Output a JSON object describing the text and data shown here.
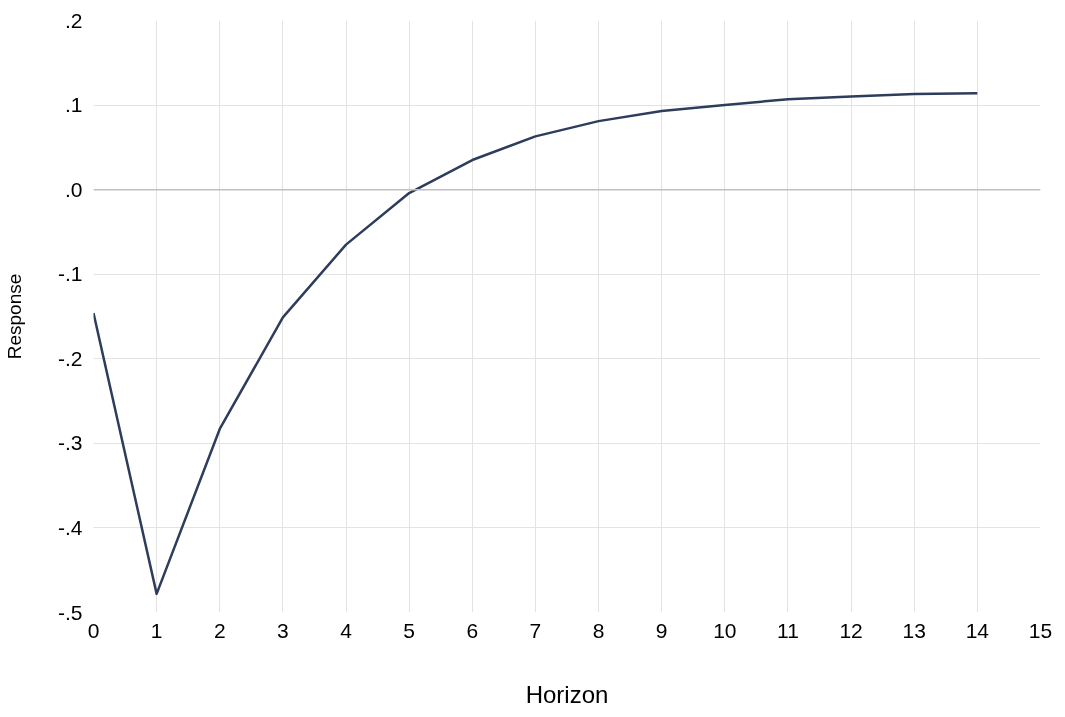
{
  "chart_data": {
    "type": "line",
    "xlabel": "Horizon",
    "ylabel": "Response",
    "x": [
      0,
      1,
      2,
      3,
      4,
      5,
      6,
      7,
      8,
      9,
      10,
      11,
      12,
      13,
      14
    ],
    "series": [
      {
        "color": "#2e3d5c",
        "values": [
          -0.146,
          -0.478,
          -0.283,
          -0.151,
          -0.065,
          -0.004,
          0.035,
          0.063,
          0.081,
          0.093,
          0.1,
          0.107,
          0.11,
          0.113,
          0.114
        ]
      }
    ],
    "xlim": [
      0,
      15
    ],
    "xticks": [
      0,
      1,
      2,
      3,
      4,
      5,
      6,
      7,
      8,
      9,
      10,
      11,
      12,
      13,
      14,
      15
    ],
    "ylim": [
      -0.5,
      0.2
    ],
    "yticks": [
      {
        "value": -0.5,
        "label": "-.5"
      },
      {
        "value": -0.4,
        "label": "-.4"
      },
      {
        "value": -0.3,
        "label": "-.3"
      },
      {
        "value": -0.2,
        "label": "-.2"
      },
      {
        "value": -0.1,
        "label": "-.1"
      },
      {
        "value": 0,
        "label": ".0"
      },
      {
        "value": 0.1,
        "label": ".1"
      },
      {
        "value": 0.2,
        "label": ".2"
      }
    ],
    "ref_lines": [
      {
        "axis": "y",
        "value": 0,
        "color": "#c0c0c0"
      }
    ],
    "grid": true,
    "line_style": "solid",
    "marker": "none"
  }
}
